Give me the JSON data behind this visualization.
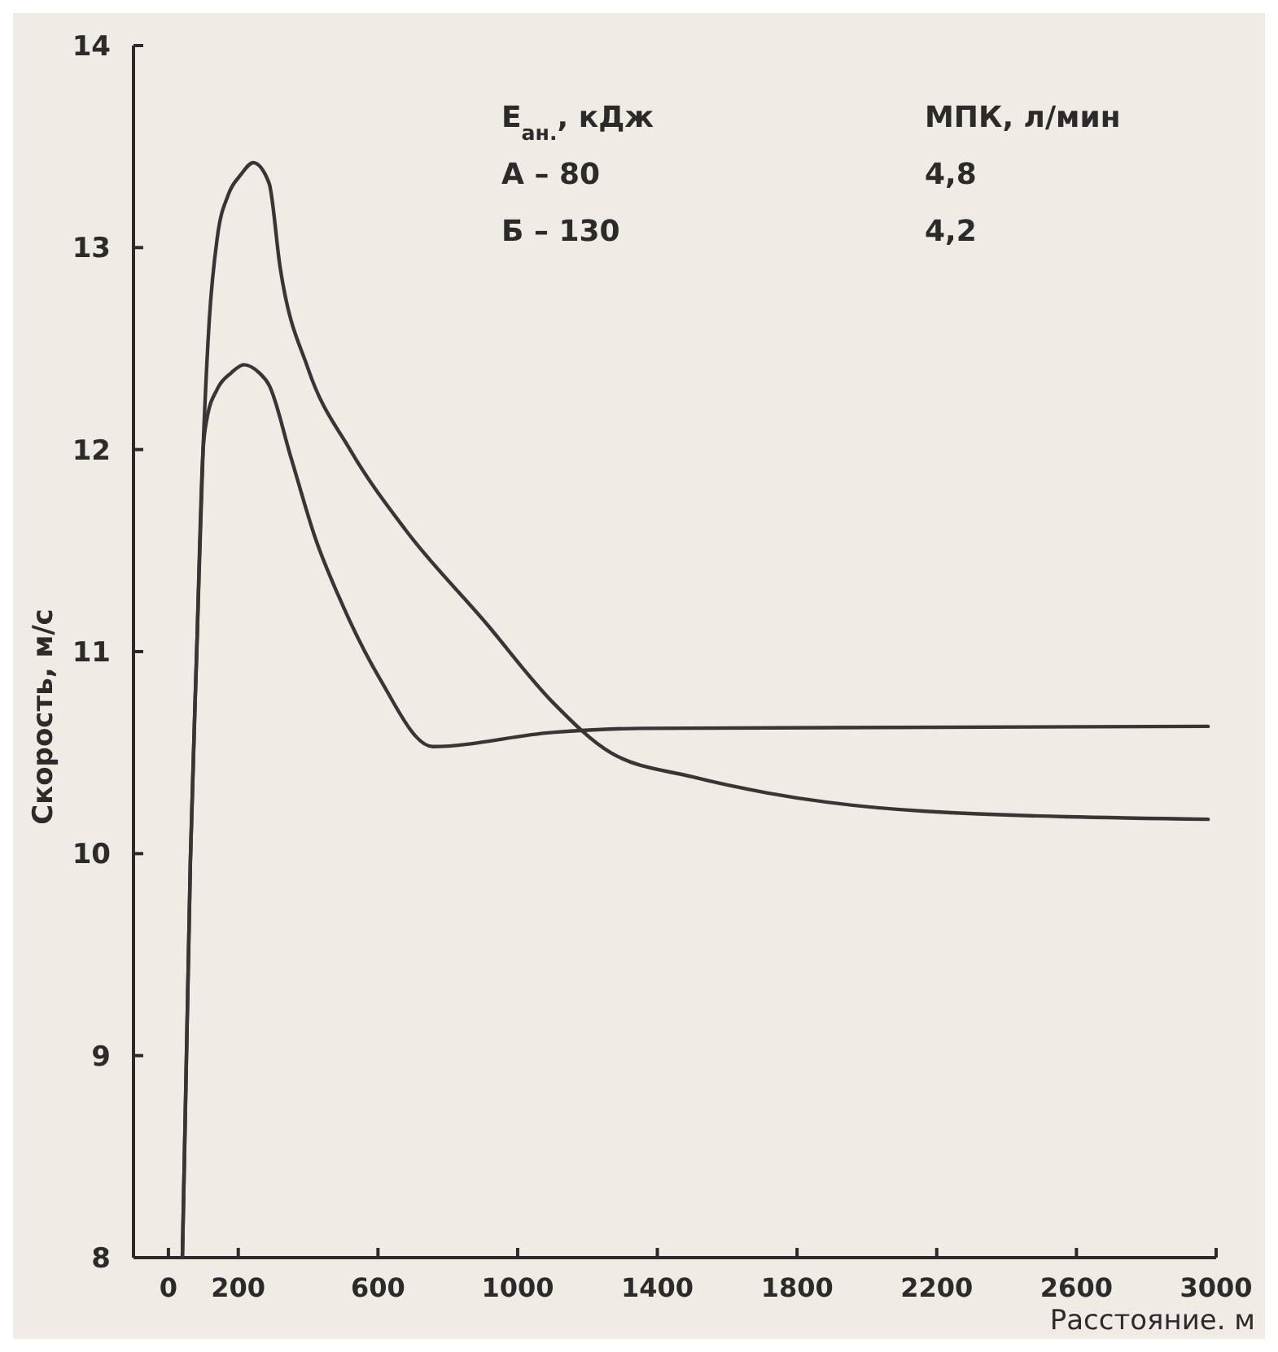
{
  "chart_data": {
    "type": "line",
    "xlabel": "Расстояние. м",
    "ylabel": "Скорость, м/с",
    "xlim": [
      -100,
      3000
    ],
    "xticks": [
      0,
      200,
      600,
      1000,
      1400,
      1800,
      2200,
      2600,
      3000
    ],
    "ylim": [
      8,
      14
    ],
    "yticks": [
      8,
      9,
      10,
      11,
      12,
      13,
      14
    ],
    "grid": false,
    "marker": "none",
    "line_style": "solid",
    "annotations": [
      "E$_{ан.}$, кДж",
      "МПК, л/мин",
      "А – 80",
      "4,8",
      "Б – 130",
      "4,2"
    ],
    "series": [
      {
        "color": "#3a3434",
        "x": [
          40,
          63,
          81,
          99,
          117,
          140,
          171,
          207,
          243,
          288,
          320,
          400,
          520,
          680,
          905,
          1100,
          1266,
          1500,
          1716,
          2167,
          2977
        ],
        "values": [
          8.0,
          9.97,
          11.0,
          11.99,
          12.64,
          13.05,
          13.26,
          13.36,
          13.42,
          13.32,
          12.9,
          12.4,
          12.0,
          11.6,
          11.15,
          10.75,
          10.5,
          10.38,
          10.3,
          10.21,
          10.17
        ]
      },
      {
        "color": "#3a3434",
        "x": [
          40,
          63,
          81,
          99,
          110,
          140,
          180,
          216,
          260,
          288,
          351,
          423,
          486,
          604,
          757,
          1099,
          1356,
          2977
        ],
        "values": [
          8.0,
          9.97,
          11.0,
          11.99,
          12.15,
          12.3,
          12.38,
          12.42,
          12.38,
          12.32,
          11.96,
          11.55,
          11.28,
          10.87,
          10.53,
          10.6,
          10.62,
          10.63
        ]
      }
    ]
  }
}
